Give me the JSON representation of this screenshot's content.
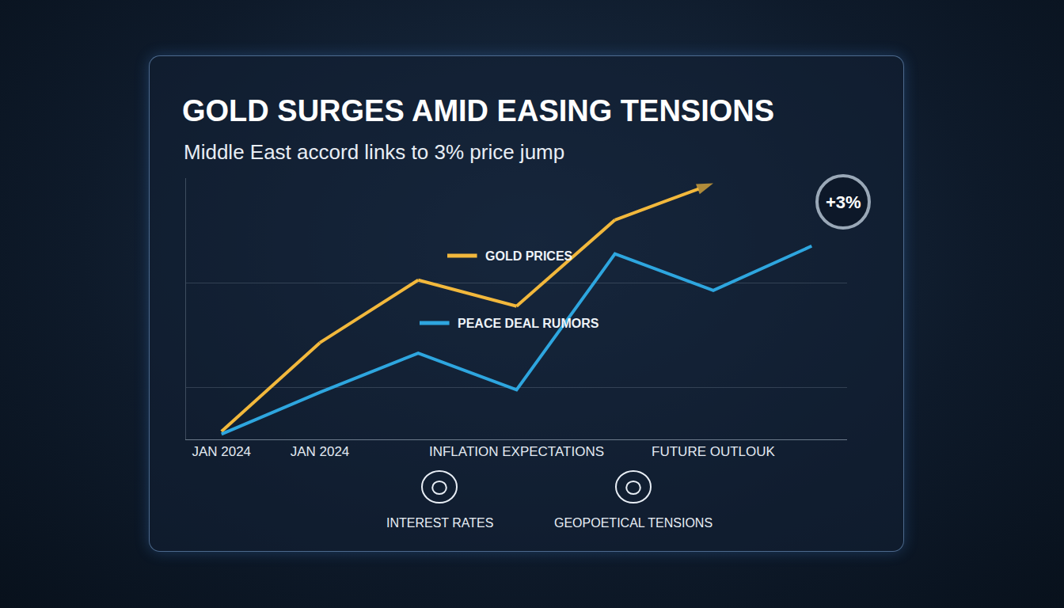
{
  "chart_data": {
    "type": "line",
    "title": "GOLD SURGES AMID EASING TENSIONS",
    "subtitle": "Middle East accord links to 3% price jump",
    "categories": [
      "JAN 2024",
      "JAN 2024",
      null,
      "INFLATION EXPECTATIONS",
      null,
      "FUTURE OUTLOUK",
      null
    ],
    "series": [
      {
        "name": "GOLD PRICES",
        "color": "#f2b83c",
        "values": [
          3,
          37,
          61,
          51,
          84,
          98,
          null
        ],
        "marker": "arrow"
      },
      {
        "name": "PEACE DEAL RUMORS",
        "color": "#2ea6df",
        "values": [
          2,
          18,
          33,
          19,
          71,
          57,
          74
        ]
      }
    ],
    "ylim": [
      0,
      100
    ],
    "yticks": [
      20,
      60
    ],
    "grid": true,
    "tick_labels": "x",
    "annotations": [
      {
        "text": "+3%"
      },
      {
        "text": "INTEREST RATES"
      },
      {
        "text": "GEOPOETICAL TENSIONS"
      }
    ]
  }
}
